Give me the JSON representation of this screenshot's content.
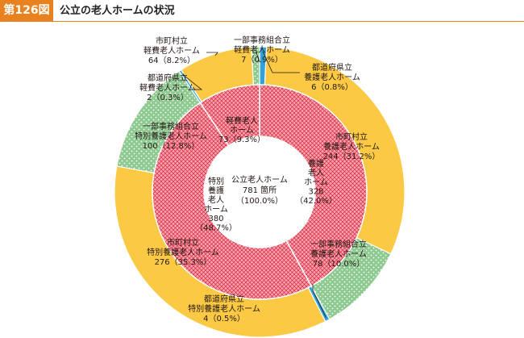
{
  "figure": {
    "number": "第126図",
    "title": "公立の老人ホームの状況"
  },
  "chart_data": {
    "type": "pie",
    "subtype": "nested-donut",
    "center": {
      "lines": [
        "公立老人ホーム",
        "781 箇所",
        "（100.0%）"
      ],
      "total": 781
    },
    "inner": [
      {
        "key": "yogo",
        "lines": [
          "養護",
          "老人",
          "ホーム",
          "328",
          "（42.0%）"
        ],
        "value": 328,
        "percent": 42.0,
        "pattern": "hatch"
      },
      {
        "key": "tokuyo",
        "lines": [
          "特別",
          "養護",
          "老人",
          "ホーム",
          "380",
          "（48.7%）"
        ],
        "value": 380,
        "percent": 48.7,
        "pattern": "hatch"
      },
      {
        "key": "keihi",
        "lines": [
          "軽費老人",
          "ホーム",
          "73（9.3%）"
        ],
        "value": 73,
        "percent": 9.3,
        "pattern": "hatch"
      }
    ],
    "outer": [
      {
        "key": "y_pref",
        "lines": [
          "都道府県立",
          "養護老人ホーム",
          "6（0.8%）"
        ],
        "value": 6,
        "percent": 0.8,
        "color": "#31a2d8"
      },
      {
        "key": "y_city",
        "lines": [
          "市町村立",
          "養護老人ホーム",
          "244（31.2%）"
        ],
        "value": 244,
        "percent": 31.2,
        "color": "#fbc943"
      },
      {
        "key": "y_union",
        "lines": [
          "一部事務組合立",
          "養護老人ホーム",
          "78（10.0%）"
        ],
        "value": 78,
        "percent": 10.0,
        "color": "#8dca8f",
        "pattern": "dots"
      },
      {
        "key": "t_pref",
        "lines": [
          "都道府県立",
          "特別養護老人ホーム",
          "4（0.5%）"
        ],
        "value": 4,
        "percent": 0.5,
        "color": "#31a2d8"
      },
      {
        "key": "t_city",
        "lines": [
          "市町村立",
          "特別養護老人ホーム",
          "276（35.3%）"
        ],
        "value": 276,
        "percent": 35.3,
        "color": "#fbc943"
      },
      {
        "key": "t_union",
        "lines": [
          "一部事務組合立",
          "特別養護老人ホーム",
          "100（12.8%）"
        ],
        "value": 100,
        "percent": 12.8,
        "color": "#8dca8f",
        "pattern": "dots"
      },
      {
        "key": "k_pref",
        "lines": [
          "都道府県立",
          "軽費老人ホーム",
          "2（0.3%）"
        ],
        "value": 2,
        "percent": 0.3,
        "color": "#31a2d8"
      },
      {
        "key": "k_city",
        "lines": [
          "市町村立",
          "軽費老人ホーム",
          "64（8.2%）"
        ],
        "value": 64,
        "percent": 8.2,
        "color": "#fbc943"
      },
      {
        "key": "k_union",
        "lines": [
          "一部事務組合立",
          "軽費老人ホーム",
          "7（0.9%）"
        ],
        "value": 7,
        "percent": 0.9,
        "color": "#8dca8f",
        "pattern": "dots"
      }
    ],
    "colors": {
      "hatch_fill": "#f4a7b0",
      "hatch_line": "#e0203a",
      "dots": "#ffffff",
      "stroke": "#ffffff",
      "leader": "#231815"
    }
  }
}
